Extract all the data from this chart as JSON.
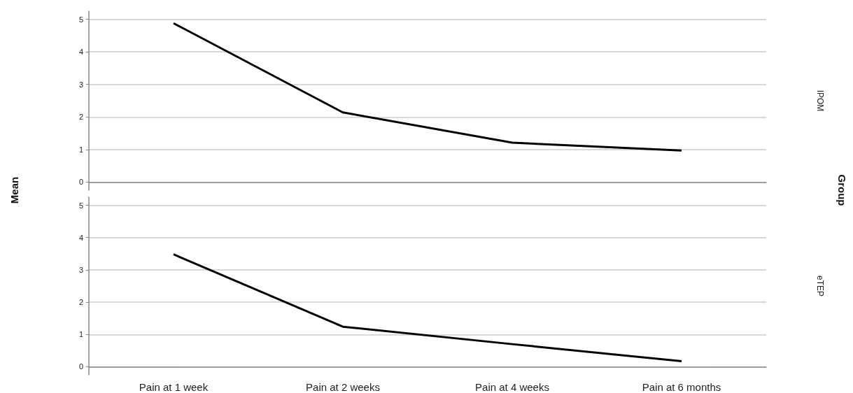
{
  "chart_data": [
    {
      "type": "line",
      "ylabel": "Mean",
      "y2label": "Group",
      "categories": [
        null,
        null,
        null,
        null
      ],
      "series": [
        {
          "name": "IPOM",
          "color": "#000000",
          "values": [
            4.88,
            2.14,
            1.21,
            0.97
          ]
        }
      ],
      "ylim": [
        -0.25,
        5.25
      ],
      "yticks": [
        0,
        1,
        2,
        3,
        4,
        5
      ],
      "grid": "y",
      "tick_labels": "y"
    },
    {
      "type": "line",
      "categories": [
        "Pain at 1 week",
        "Pain at 2 weeks",
        "Pain at 4 weeks",
        "Pain at 6 months"
      ],
      "series": [
        {
          "name": "eTEP",
          "color": "#000000",
          "values": [
            3.48,
            1.24,
            0.7,
            0.17
          ]
        }
      ],
      "ylim": [
        -0.25,
        5.25
      ],
      "yticks": [
        0,
        1,
        2,
        3,
        4,
        5
      ],
      "grid": "y"
    }
  ]
}
